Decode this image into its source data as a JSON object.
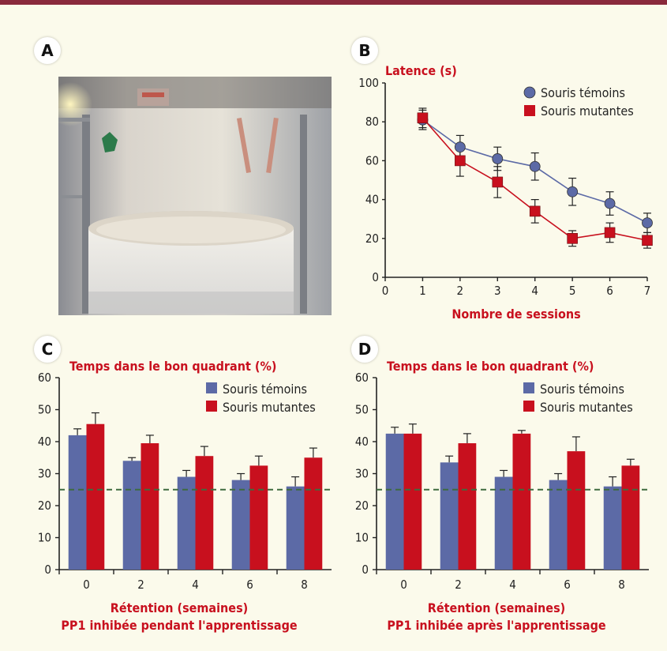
{
  "panels": {
    "a": {
      "label": "A"
    },
    "b": {
      "label": "B"
    },
    "c": {
      "label": "C"
    },
    "d": {
      "label": "D"
    }
  },
  "colors": {
    "temoins": "#5c6aa6",
    "mutantes": "#c8101e",
    "title_red": "#c8101e",
    "dash": "#3f6b3f",
    "topbar": "#8a2a3c"
  },
  "photo": {
    "description_icon": "water-maze-photo"
  },
  "chart_data": [
    {
      "type": "line",
      "ylabel": "Latence (s)",
      "xlabel": "Nombre de sessions",
      "xlim": [
        0,
        7
      ],
      "ylim": [
        0,
        100
      ],
      "xticks": [
        0,
        1,
        2,
        3,
        4,
        5,
        6,
        7
      ],
      "yticks": [
        0,
        20,
        40,
        60,
        80,
        100
      ],
      "legend_position": "top-right",
      "x": [
        1,
        2,
        3,
        4,
        5,
        6,
        7
      ],
      "series": [
        {
          "name": "Souris témoins",
          "marker": "circle",
          "values": [
            81,
            67,
            61,
            57,
            44,
            38,
            28
          ],
          "errors": [
            5,
            6,
            6,
            7,
            7,
            6,
            5
          ]
        },
        {
          "name": "Souris mutantes",
          "marker": "square",
          "values": [
            82,
            60,
            49,
            34,
            20,
            23,
            19
          ],
          "errors": [
            5,
            8,
            8,
            6,
            4,
            5,
            4
          ]
        }
      ]
    },
    {
      "type": "bar",
      "title": "Temps dans le bon quadrant (%)",
      "xlabel": "Rétention (semaines)",
      "subtitle": "PP1 inhibée pendant l'apprentissage",
      "categories": [
        "0",
        "2",
        "4",
        "6",
        "8"
      ],
      "ylim": [
        0,
        60
      ],
      "yticks": [
        0,
        10,
        20,
        30,
        40,
        50,
        60
      ],
      "reference_line": 25,
      "legend_position": "top-right",
      "series": [
        {
          "name": "Souris témoins",
          "values": [
            42,
            34,
            29,
            28,
            26
          ],
          "errors": [
            2,
            1,
            2,
            2,
            3
          ]
        },
        {
          "name": "Souris mutantes",
          "values": [
            45.5,
            39.5,
            35.5,
            32.5,
            35
          ],
          "errors": [
            3.5,
            2.5,
            3,
            3,
            3
          ]
        }
      ]
    },
    {
      "type": "bar",
      "title": "Temps dans le bon quadrant (%)",
      "xlabel": "Rétention (semaines)",
      "subtitle": "PP1 inhibée après l'apprentissage",
      "categories": [
        "0",
        "2",
        "4",
        "6",
        "8"
      ],
      "ylim": [
        0,
        60
      ],
      "yticks": [
        0,
        10,
        20,
        30,
        40,
        50,
        60
      ],
      "reference_line": 25,
      "legend_position": "top-right",
      "series": [
        {
          "name": "Souris témoins",
          "values": [
            42.5,
            33.5,
            29,
            28,
            26
          ],
          "errors": [
            2,
            2,
            2,
            2,
            3
          ]
        },
        {
          "name": "Souris mutantes",
          "values": [
            42.5,
            39.5,
            42.5,
            37,
            32.5
          ],
          "errors": [
            3,
            3,
            1,
            4.5,
            2
          ]
        }
      ]
    }
  ]
}
